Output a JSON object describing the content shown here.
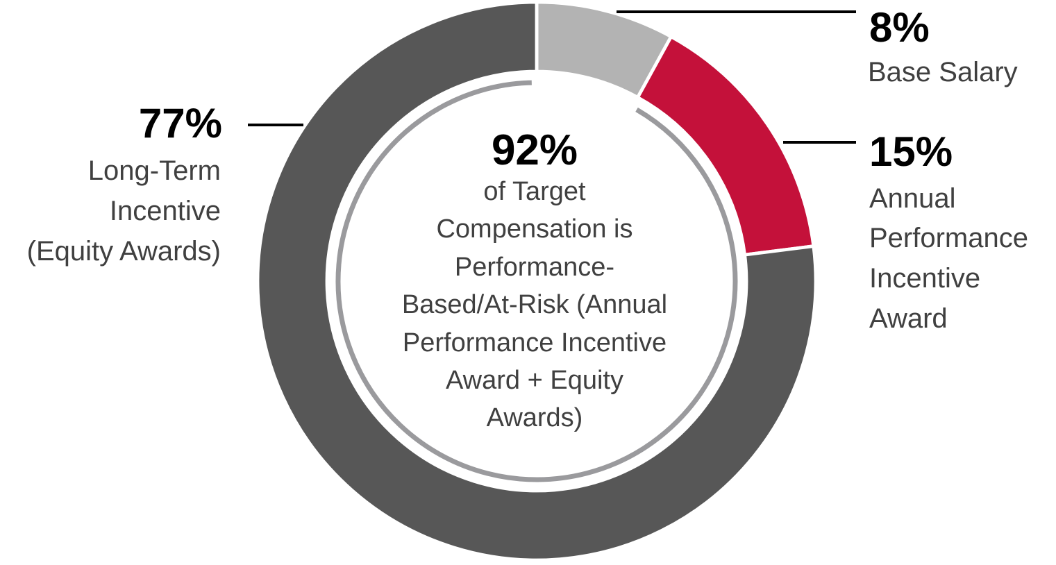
{
  "chart_data": {
    "type": "pie",
    "variant": "donut",
    "slices": [
      {
        "percent_label": "8%",
        "value": 8,
        "label_lines": [
          "Base Salary"
        ],
        "color": "#b3b3b3"
      },
      {
        "percent_label": "15%",
        "value": 15,
        "label_lines": [
          "Annual",
          "Performance",
          "Incentive",
          "Award"
        ],
        "color": "#c4113a"
      },
      {
        "percent_label": "77%",
        "value": 77,
        "label_lines": [
          "Long-Term",
          "Incentive",
          "(Equity Awards)"
        ],
        "color": "#575757"
      }
    ],
    "center": {
      "percent_label": "92%",
      "value": 92,
      "label_lines": [
        "of Target",
        "Compensation is",
        "Performance-",
        "Based/At-Risk (Annual",
        "Performance Incentive",
        "Award + Equity",
        "Awards)"
      ],
      "ring_color": "#9a9a9d"
    },
    "leader_line_color": "#000000"
  }
}
